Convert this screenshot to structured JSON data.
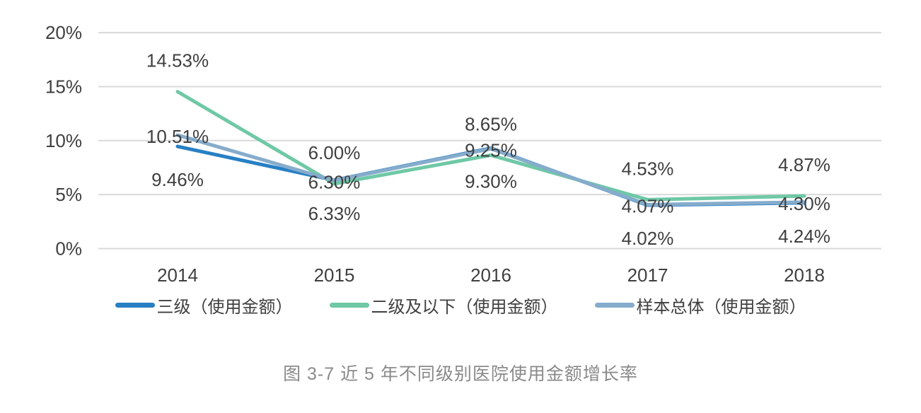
{
  "colors": {
    "series_blue": "#2780C4",
    "series_green": "#6FC8A6",
    "series_gray_blue": "#86ACCC",
    "gridline": "#D9D9D9",
    "axis_text": "#3F3F3F",
    "data_label_text": "#3F3F3F",
    "caption_text": "#8A8A8A",
    "background": "#FFFFFF"
  },
  "chart_data": {
    "type": "line",
    "title": "图 3-7 近 5 年不同级别医院使用金额增长率",
    "categories": [
      "2014",
      "2015",
      "2016",
      "2017",
      "2018"
    ],
    "series": [
      {
        "name": "三级（使用金额）",
        "values": [
          9.46,
          6.33,
          9.3,
          4.02,
          4.24
        ],
        "labels": [
          "9.46%",
          "6.33%",
          "9.30%",
          "4.02%",
          "4.24%"
        ],
        "color": "#2780C4",
        "label_position": "below"
      },
      {
        "name": "二级及以下（使用金额）",
        "values": [
          14.53,
          6.0,
          8.65,
          4.53,
          4.87
        ],
        "labels": [
          "14.53%",
          "6.00%",
          "8.65%",
          "4.53%",
          "4.87%"
        ],
        "color": "#6FC8A6",
        "label_position": "above"
      },
      {
        "name": "样本总体（使用金额）",
        "values": [
          10.51,
          6.3,
          9.25,
          4.07,
          4.3
        ],
        "labels": [
          "10.51%",
          "6.30%",
          "9.25%",
          "4.07%",
          "4.30%"
        ],
        "color": "#86ACCC",
        "label_position": "center"
      }
    ],
    "yticks": {
      "values": [
        0,
        5,
        10,
        15,
        20
      ],
      "labels": [
        "0%",
        "5%",
        "10%",
        "15%",
        "20%"
      ]
    },
    "ylim": [
      0,
      20
    ],
    "xlabel": "",
    "ylabel": "",
    "grid": true,
    "legend_position": "bottom"
  }
}
